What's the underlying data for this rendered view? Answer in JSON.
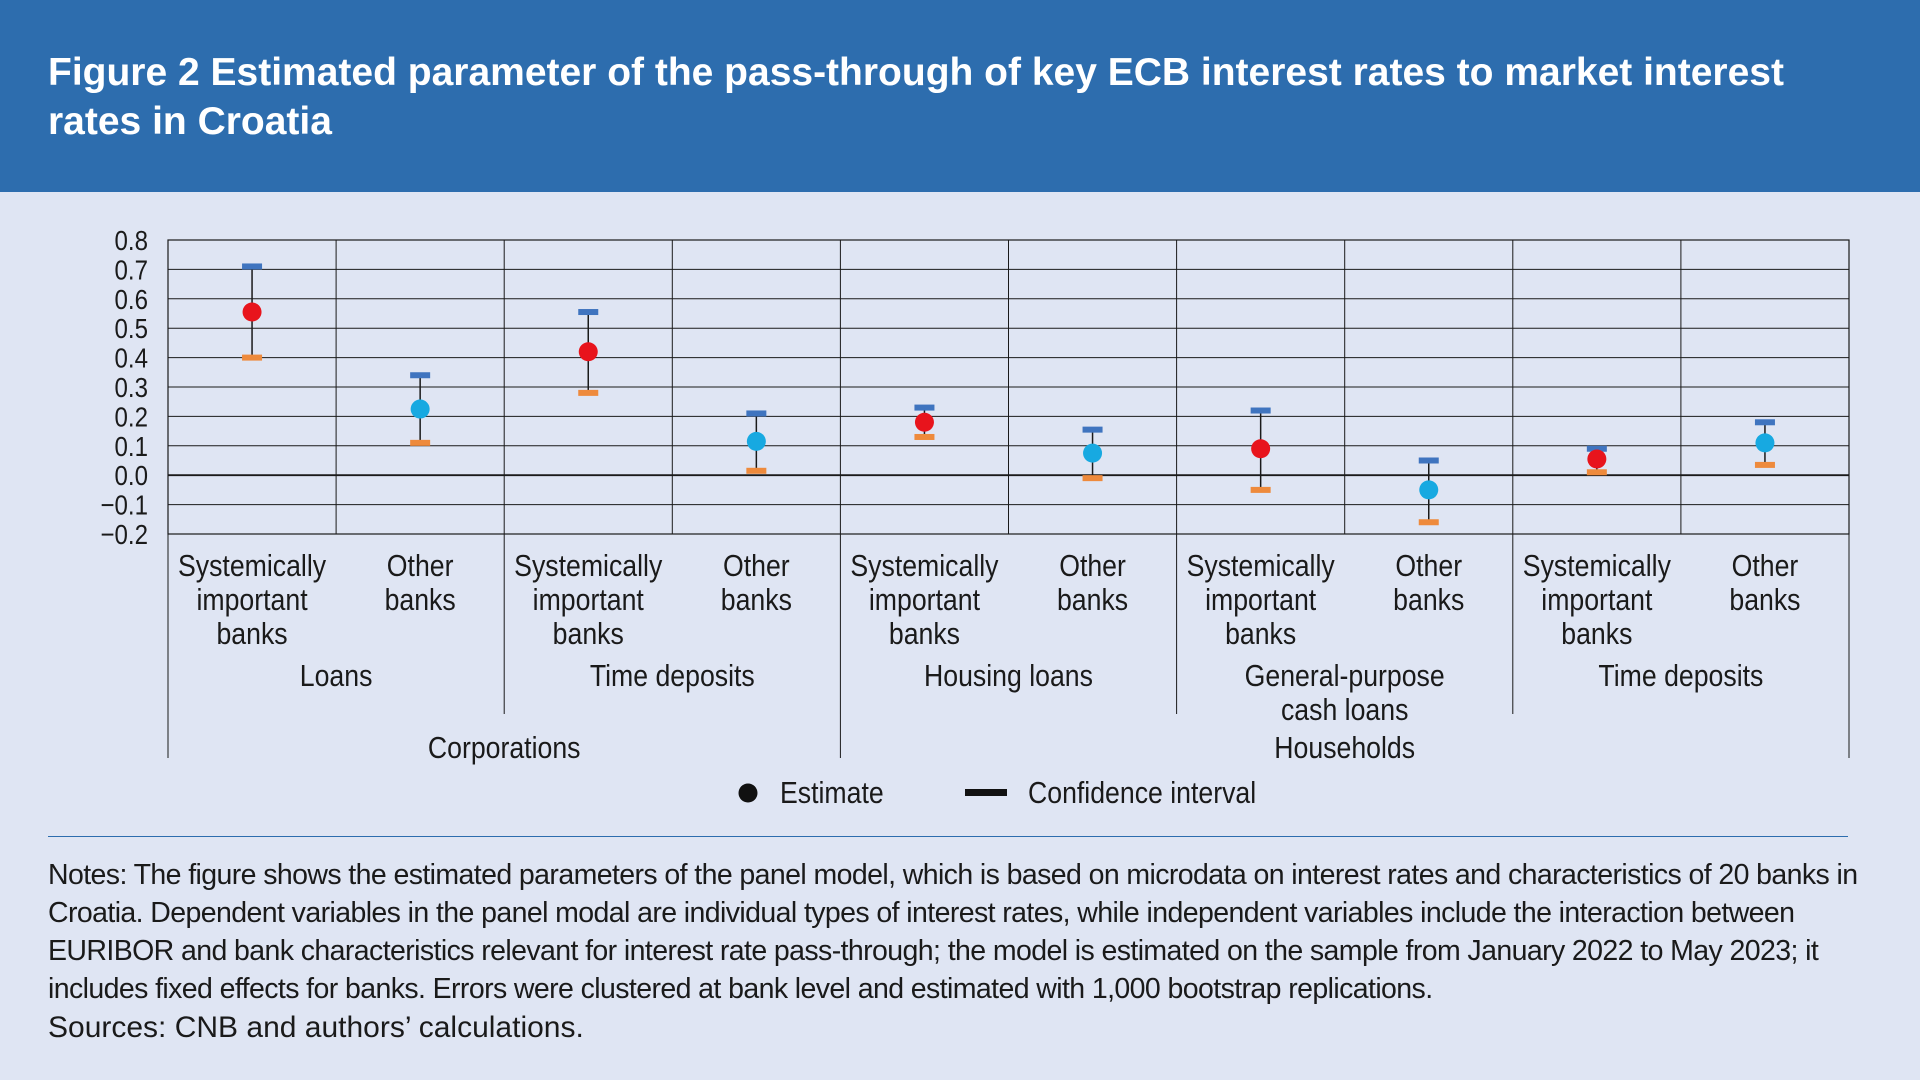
{
  "figure": {
    "title": "Figure 2 Estimated parameter of the pass-through of key ECB interest rates to market interest rates in Croatia",
    "notes": "Notes: The figure shows the estimated parameters of the panel model, which is based on microdata on interest rates and characteristics of 20 banks in Croatia. Dependent variables in the panel modal are individual types of interest rates, while independent variables include the interaction between EURIBOR and bank characteristics relevant for interest rate pass-through; the model is estimated on the sample from January 2022 to May 2023; it includes fixed effects for banks. Errors were clustered at bank level and estimated with 1,000 bootstrap replications.",
    "sources": "Sources: CNB and authors’ calculations."
  },
  "colors": {
    "header_bg": "#2d6dae",
    "background": "#dfe5f3",
    "systemic_point": "#e8141c",
    "other_point": "#17a9e1",
    "upper_bound": "#3f74bf",
    "lower_bound": "#ee8a3c",
    "whisker": "#1a1a1a",
    "grid": "#1a1a1a"
  },
  "chart_data": {
    "type": "scatter",
    "title": "",
    "xlabel": "",
    "ylabel": "",
    "ylim": [
      -0.2,
      0.8
    ],
    "yticks": [
      "0.8",
      "0.7",
      "0.6",
      "0.5",
      "0.4",
      "0.3",
      "0.2",
      "0.1",
      "0.0",
      "−0.1",
      "−0.2"
    ],
    "grid": true,
    "legend": {
      "placement": "bottom",
      "items": [
        {
          "label": "Estimate",
          "icon": "dot-icon"
        },
        {
          "label": "Confidence interval",
          "icon": "dash-icon"
        }
      ]
    },
    "categories": [
      {
        "label": [
          "Systemically",
          "important",
          "banks"
        ],
        "kind": "systemic",
        "estimate": 0.555,
        "ci_low": 0.4,
        "ci_high": 0.71
      },
      {
        "label": [
          "Other",
          "banks"
        ],
        "kind": "other",
        "estimate": 0.225,
        "ci_low": 0.11,
        "ci_high": 0.34
      },
      {
        "label": [
          "Systemically",
          "important",
          "banks"
        ],
        "kind": "systemic",
        "estimate": 0.42,
        "ci_low": 0.28,
        "ci_high": 0.555
      },
      {
        "label": [
          "Other",
          "banks"
        ],
        "kind": "other",
        "estimate": 0.115,
        "ci_low": 0.015,
        "ci_high": 0.21
      },
      {
        "label": [
          "Systemically",
          "important",
          "banks"
        ],
        "kind": "systemic",
        "estimate": 0.18,
        "ci_low": 0.13,
        "ci_high": 0.23
      },
      {
        "label": [
          "Other",
          "banks"
        ],
        "kind": "other",
        "estimate": 0.075,
        "ci_low": -0.01,
        "ci_high": 0.155
      },
      {
        "label": [
          "Systemically",
          "important",
          "banks"
        ],
        "kind": "systemic",
        "estimate": 0.09,
        "ci_low": -0.05,
        "ci_high": 0.22
      },
      {
        "label": [
          "Other",
          "banks"
        ],
        "kind": "other",
        "estimate": -0.05,
        "ci_low": -0.16,
        "ci_high": 0.05
      },
      {
        "label": [
          "Systemically",
          "important",
          "banks"
        ],
        "kind": "systemic",
        "estimate": 0.055,
        "ci_low": 0.01,
        "ci_high": 0.09
      },
      {
        "label": [
          "Other",
          "banks"
        ],
        "kind": "other",
        "estimate": 0.11,
        "ci_low": 0.035,
        "ci_high": 0.18
      }
    ],
    "group_labels": [
      {
        "label": [
          "Loans"
        ],
        "span": [
          0,
          1
        ]
      },
      {
        "label": [
          "Time deposits"
        ],
        "span": [
          2,
          3
        ]
      },
      {
        "label": [
          "Housing loans"
        ],
        "span": [
          4,
          5
        ]
      },
      {
        "label": [
          "General-purpose",
          "cash loans"
        ],
        "span": [
          6,
          7
        ]
      },
      {
        "label": [
          "Time deposits"
        ],
        "span": [
          8,
          9
        ]
      }
    ],
    "sector_labels": [
      {
        "label": "Corporations",
        "span": [
          0,
          3
        ]
      },
      {
        "label": "Households",
        "span": [
          4,
          9
        ]
      }
    ]
  }
}
